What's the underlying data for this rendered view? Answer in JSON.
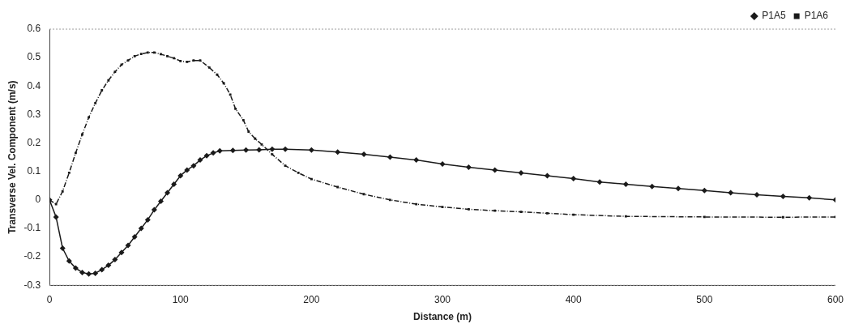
{
  "chart_data": {
    "type": "line",
    "xlabel": "Distance (m)",
    "ylabel": "Transverse Vel. Component (m/s)",
    "xlim": [
      0,
      600
    ],
    "xticks": [
      0,
      100,
      200,
      300,
      400,
      500,
      600
    ],
    "ylim": [
      -0.3,
      0.6
    ],
    "yticks": [
      -0.3,
      -0.2,
      -0.1,
      0,
      0.1,
      0.2,
      0.3,
      0.4,
      0.5,
      0.6
    ],
    "legend": "top right",
    "series": [
      {
        "name": "P1A5",
        "color": "#1a1a1a",
        "marker": "diamond",
        "line_style": "solid",
        "x": [
          0,
          5,
          10,
          15,
          20,
          25,
          30,
          35,
          40,
          45,
          50,
          55,
          60,
          65,
          70,
          75,
          80,
          85,
          90,
          95,
          100,
          105,
          110,
          115,
          120,
          125,
          130,
          140,
          150,
          160,
          170,
          180,
          200,
          220,
          240,
          260,
          280,
          300,
          320,
          340,
          360,
          380,
          400,
          420,
          440,
          460,
          480,
          500,
          520,
          540,
          560,
          580,
          600
        ],
        "values": [
          0,
          -0.06,
          -0.17,
          -0.215,
          -0.24,
          -0.255,
          -0.26,
          -0.258,
          -0.245,
          -0.23,
          -0.21,
          -0.185,
          -0.16,
          -0.13,
          -0.1,
          -0.07,
          -0.035,
          -0.005,
          0.025,
          0.055,
          0.085,
          0.105,
          0.12,
          0.14,
          0.155,
          0.165,
          0.172,
          0.174,
          0.175,
          0.176,
          0.178,
          0.178,
          0.175,
          0.168,
          0.16,
          0.15,
          0.14,
          0.126,
          0.115,
          0.105,
          0.095,
          0.085,
          0.075,
          0.063,
          0.055,
          0.047,
          0.04,
          0.033,
          0.025,
          0.018,
          0.012,
          0.007,
          0
        ]
      },
      {
        "name": "P1A6",
        "color": "#1a1a1a",
        "marker": "square",
        "line_style": "dashed",
        "x": [
          0,
          5,
          10,
          15,
          20,
          25,
          30,
          35,
          40,
          45,
          50,
          55,
          60,
          65,
          70,
          75,
          80,
          85,
          90,
          95,
          100,
          105,
          110,
          115,
          122,
          128,
          133,
          138,
          142,
          148,
          152,
          157,
          162,
          170,
          180,
          190,
          200,
          220,
          240,
          260,
          280,
          300,
          320,
          340,
          360,
          380,
          400,
          440,
          500,
          560,
          600
        ],
        "values": [
          0,
          -0.015,
          0.03,
          0.095,
          0.165,
          0.23,
          0.29,
          0.34,
          0.385,
          0.42,
          0.45,
          0.475,
          0.49,
          0.505,
          0.513,
          0.518,
          0.518,
          0.512,
          0.505,
          0.498,
          0.488,
          0.485,
          0.49,
          0.49,
          0.465,
          0.44,
          0.41,
          0.37,
          0.32,
          0.28,
          0.24,
          0.215,
          0.195,
          0.16,
          0.12,
          0.095,
          0.073,
          0.045,
          0.02,
          0,
          -0.015,
          -0.025,
          -0.033,
          -0.038,
          -0.042,
          -0.047,
          -0.052,
          -0.058,
          -0.06,
          -0.061,
          -0.06
        ]
      }
    ]
  }
}
